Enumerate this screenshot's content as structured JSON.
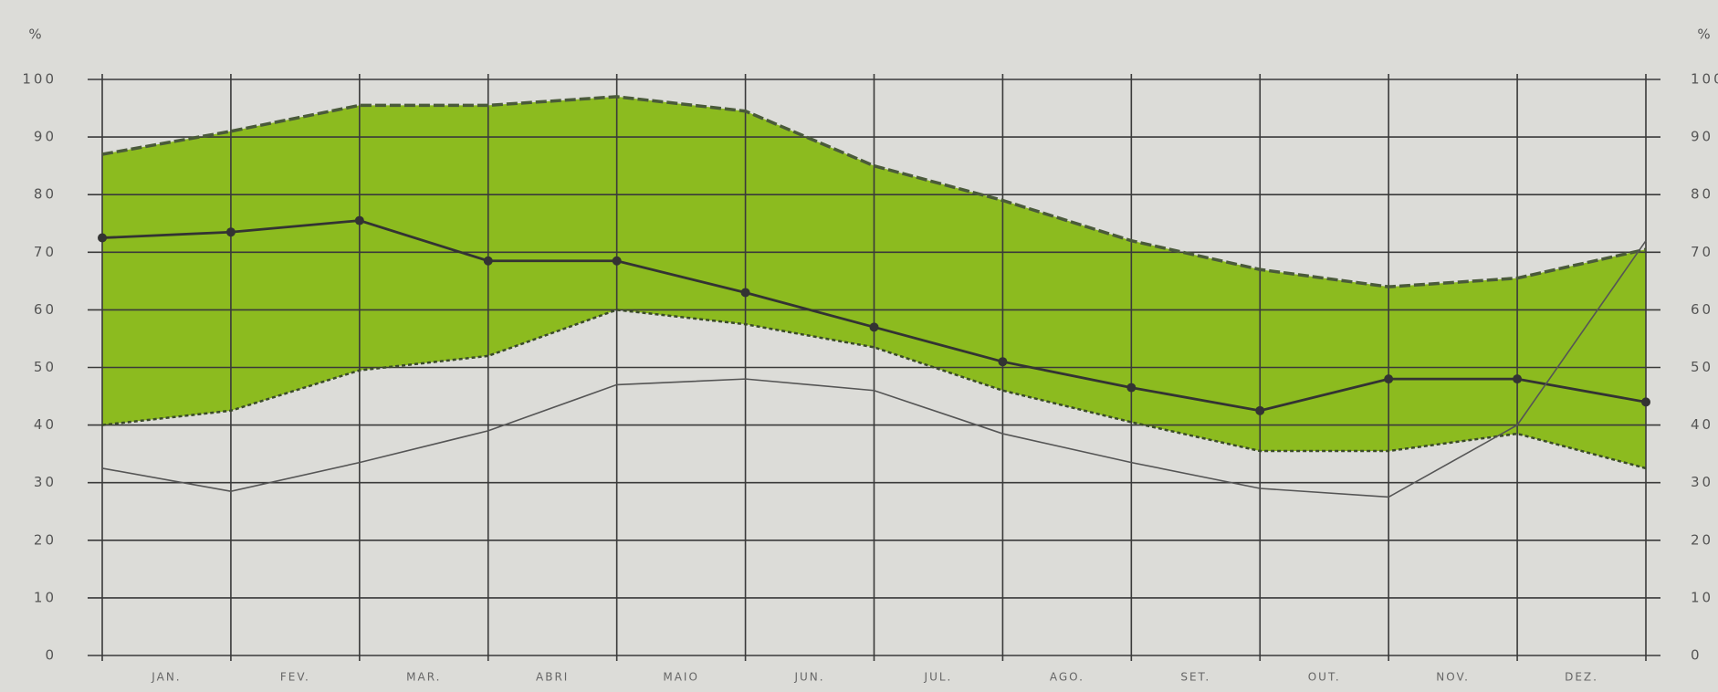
{
  "chart_data": {
    "type": "line",
    "y_label": "%",
    "x": [
      0,
      1,
      2,
      3,
      4,
      5,
      6,
      7,
      8,
      9,
      10,
      11,
      12
    ],
    "xlim": [
      0,
      12
    ],
    "xticks": [
      {
        "value": 0.5,
        "label": "JAN."
      },
      {
        "value": 1.5,
        "label": "FEV."
      },
      {
        "value": 2.5,
        "label": "MAR."
      },
      {
        "value": 3.5,
        "label": "ABRI"
      },
      {
        "value": 4.5,
        "label": "MAIO"
      },
      {
        "value": 5.5,
        "label": "JUN."
      },
      {
        "value": 6.5,
        "label": "JUL."
      },
      {
        "value": 7.5,
        "label": "AGO."
      },
      {
        "value": 8.5,
        "label": "SET."
      },
      {
        "value": 9.5,
        "label": "OUT."
      },
      {
        "value": 10.5,
        "label": "NOV."
      },
      {
        "value": 11.5,
        "label": "DEZ."
      }
    ],
    "ylim": [
      0,
      100
    ],
    "yticks": [
      0,
      10,
      20,
      30,
      40,
      50,
      60,
      70,
      80,
      90,
      100
    ],
    "grid": true,
    "fill_color": "#8cbb1f",
    "series": [
      {
        "color": "#4a5a3a",
        "style": "dashed",
        "values": [
          87,
          91,
          95.5,
          95.5,
          97,
          94.5,
          85,
          79,
          72,
          67,
          64,
          65.5,
          70.5
        ]
      },
      {
        "color": "#3a4a2a",
        "style": "dotted",
        "values": [
          40,
          42.5,
          49.5,
          52,
          60,
          57.5,
          53.5,
          46,
          40.5,
          35.5,
          35.5,
          38.5,
          32.5
        ]
      },
      {
        "color": "#333333",
        "style": "solid-markers",
        "values": [
          72.5,
          73.5,
          75.5,
          68.5,
          68.5,
          63,
          57,
          51,
          46.5,
          42.5,
          48,
          48,
          44
        ]
      },
      {
        "color": "#555555",
        "style": "thin",
        "values": [
          32.5,
          28.5,
          33.5,
          39,
          47,
          48,
          46,
          38.5,
          33.5,
          29,
          27.5,
          40,
          72
        ]
      }
    ]
  }
}
